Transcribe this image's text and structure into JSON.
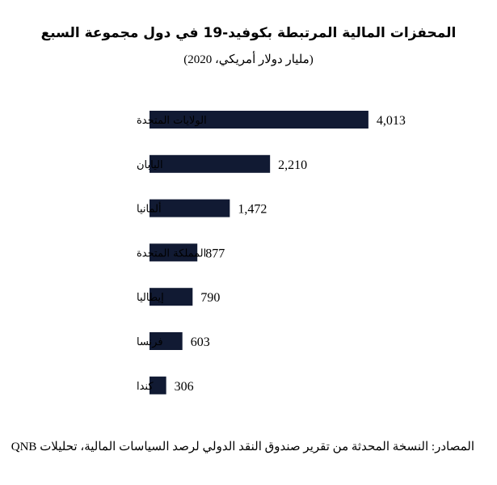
{
  "chart_data": {
    "type": "bar",
    "orientation": "horizontal",
    "title": "المحفزات المالية المرتبطة بكوفيد-19 في دول مجموعة السبع",
    "subtitle": "(مليار دولار أمريكي، 2020)",
    "categories": [
      "الولايات المتحدة",
      "اليابان",
      "ألمانيا",
      "المملكة المتحدة",
      "إيطاليا",
      "فرنسا",
      "كندا"
    ],
    "values": [
      4013,
      2210,
      1472,
      877,
      790,
      603,
      306
    ],
    "value_labels": [
      "4,013",
      "2,210",
      "1,472",
      "877",
      "790",
      "603",
      "306"
    ],
    "bar_color": "#111a33",
    "xlim": [
      0,
      4200
    ],
    "grid": false,
    "legend": "none"
  },
  "source": "المصادر: النسخة المحدثة من تقرير صندوق النقد الدولي لرصد السياسات المالية، تحليلات QNB"
}
